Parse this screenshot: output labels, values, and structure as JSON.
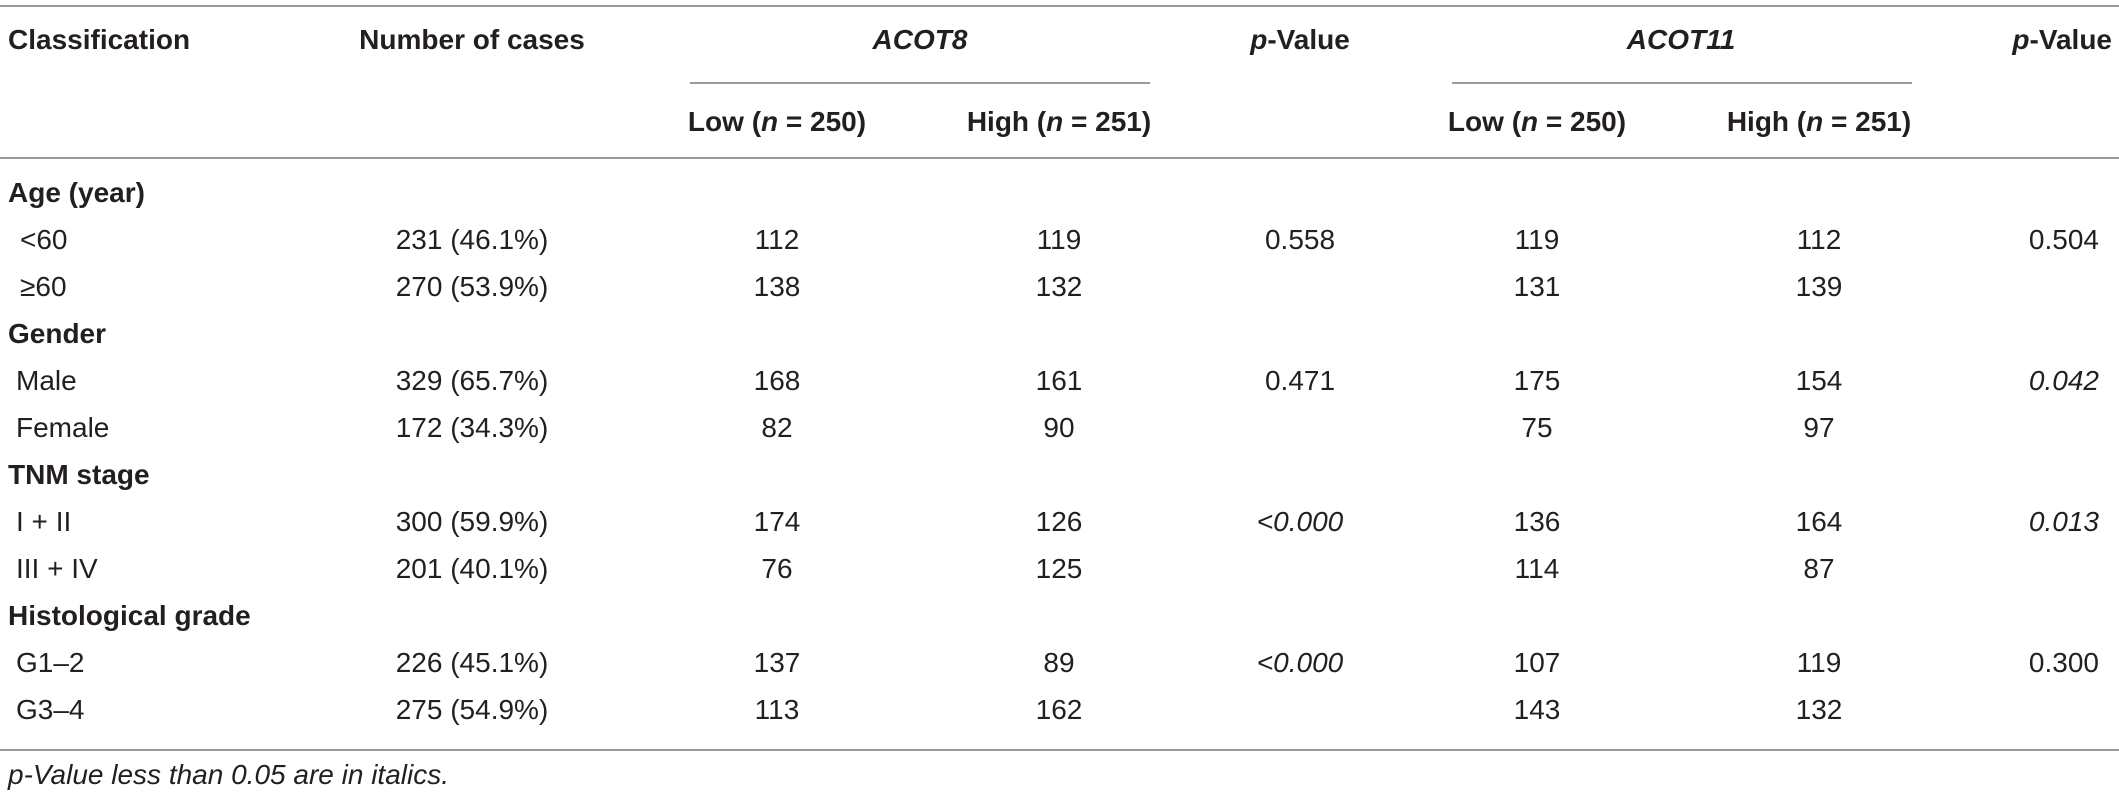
{
  "header": {
    "classification": "Classification",
    "cases": "Number of cases",
    "gene1": "ACOT8",
    "gene2": "ACOT11",
    "p_prefix": "p",
    "p_suffix": "-Value",
    "low_prefix": "Low (",
    "high_prefix": "High (",
    "n_var": "n",
    "low_n": " = 250)",
    "high_n": " = 251)"
  },
  "groups": [
    {
      "label": "Age (year)",
      "rows": [
        {
          "label": "<60",
          "cases": "231 (46.1%)",
          "acot8_low": "112",
          "acot8_high": "119",
          "acot8_p": "0.558",
          "acot11_low": "119",
          "acot11_high": "112",
          "acot11_p": "0.504"
        },
        {
          "label": "≥60",
          "cases": "270 (53.9%)",
          "acot8_low": "138",
          "acot8_high": "132",
          "acot8_p": "",
          "acot11_low": "131",
          "acot11_high": "139",
          "acot11_p": ""
        }
      ]
    },
    {
      "label": "Gender",
      "rows": [
        {
          "label": "Male",
          "cases": "329 (65.7%)",
          "acot8_low": "168",
          "acot8_high": "161",
          "acot8_p": "0.471",
          "acot11_low": "175",
          "acot11_high": "154",
          "acot11_p": "0.042"
        },
        {
          "label": "Female",
          "cases": "172 (34.3%)",
          "acot8_low": "82",
          "acot8_high": "90",
          "acot8_p": "",
          "acot11_low": "75",
          "acot11_high": "97",
          "acot11_p": ""
        }
      ]
    },
    {
      "label": "TNM stage",
      "rows": [
        {
          "label": "I + II",
          "cases": "300 (59.9%)",
          "acot8_low": "174",
          "acot8_high": "126",
          "acot8_p": "<0.000",
          "acot11_low": "136",
          "acot11_high": "164",
          "acot11_p": "0.013"
        },
        {
          "label": "III + IV",
          "cases": "201 (40.1%)",
          "acot8_low": "76",
          "acot8_high": "125",
          "acot8_p": "",
          "acot11_low": "114",
          "acot11_high": "87",
          "acot11_p": ""
        }
      ]
    },
    {
      "label": "Histological grade",
      "rows": [
        {
          "label": "G1–2",
          "cases": "226 (45.1%)",
          "acot8_low": "137",
          "acot8_high": "89",
          "acot8_p": "<0.000",
          "acot11_low": "107",
          "acot11_high": "119",
          "acot11_p": "0.300"
        },
        {
          "label": "G3–4",
          "cases": "275 (54.9%)",
          "acot8_low": "113",
          "acot8_high": "162",
          "acot8_p": "",
          "acot11_low": "143",
          "acot11_high": "132",
          "acot11_p": ""
        }
      ]
    }
  ],
  "footnote": "p-Value less than 0.05 are in italics."
}
